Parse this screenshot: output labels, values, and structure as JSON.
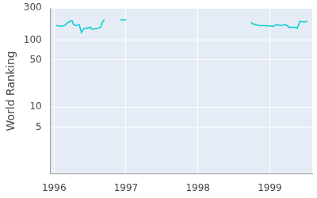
{
  "chart_data": {
    "type": "line",
    "y_label": "World Ranking",
    "x": [
      1996.03,
      1996.1,
      1996.15,
      1996.2,
      1996.25,
      1996.27,
      1996.3,
      1996.35,
      1996.38,
      1996.42,
      1996.45,
      1996.5,
      1996.53,
      1996.6,
      1996.65,
      1996.67,
      1996.7,
      1996.8,
      1996.92,
      1997.0,
      1997.5,
      1998.74,
      1998.76,
      1998.85,
      1998.95,
      1999.05,
      1999.1,
      1999.15,
      1999.22,
      1999.27,
      1999.35,
      1999.38,
      1999.42,
      1999.48,
      1999.52
    ],
    "values": [
      165,
      160,
      165,
      185,
      195,
      170,
      165,
      170,
      130,
      150,
      150,
      155,
      145,
      150,
      155,
      185,
      200,
      null,
      200,
      200,
      null,
      185,
      175,
      165,
      163,
      160,
      170,
      165,
      170,
      155,
      155,
      150,
      190,
      185,
      190
    ],
    "color": "#00ced1",
    "xlim": [
      1995.95,
      1999.59
    ],
    "xticks": [
      1996,
      1997,
      1998,
      1999
    ],
    "ylim": [
      1,
      300
    ],
    "yticks": [
      5,
      10,
      50,
      100,
      300
    ],
    "log": "y",
    "grid": true
  }
}
